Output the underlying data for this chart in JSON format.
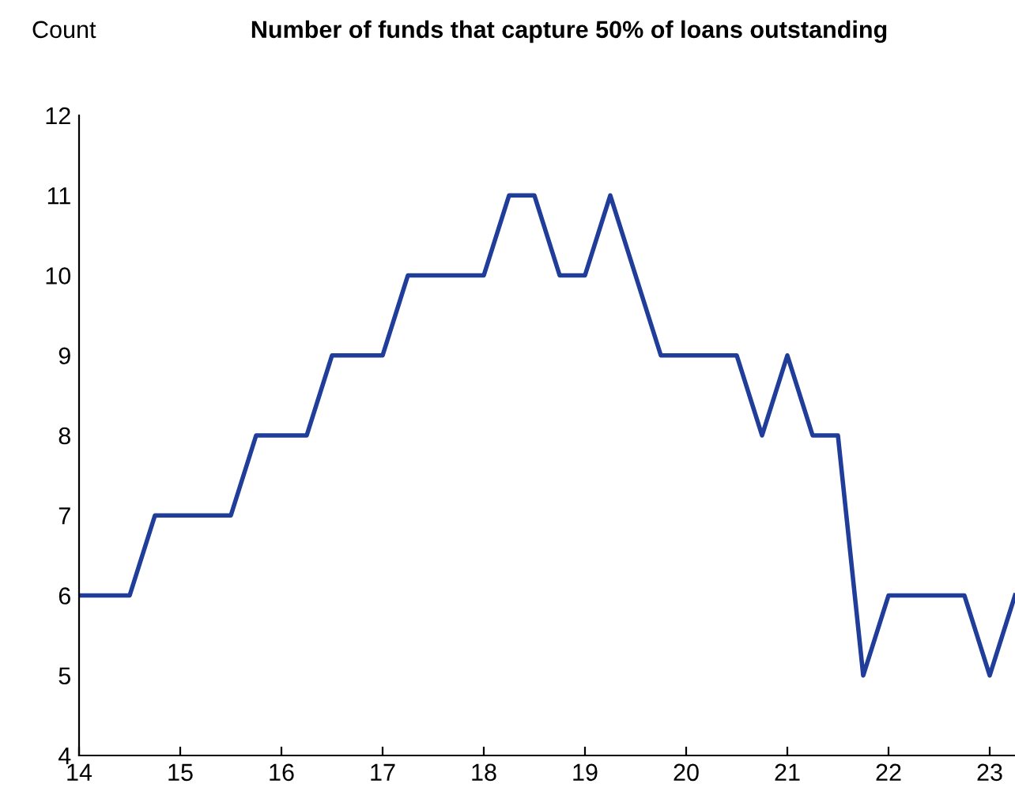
{
  "chart_data": {
    "type": "line",
    "title": "Number of funds that capture 50% of loans outstanding",
    "ylabel": "Count",
    "x": [
      14.0,
      14.5,
      14.75,
      15.5,
      15.75,
      16.25,
      16.5,
      17.0,
      17.25,
      18.0,
      18.25,
      18.5,
      18.75,
      19.0,
      19.25,
      19.75,
      20.5,
      20.75,
      21.0,
      21.25,
      21.5,
      21.75,
      22.0,
      22.75,
      23.0,
      23.25
    ],
    "series": [
      {
        "color": "#1f3d99",
        "values": [
          6,
          6,
          7,
          7,
          8,
          8,
          9,
          9,
          10,
          10,
          11,
          11,
          10,
          10,
          11,
          9,
          9,
          8,
          9,
          8,
          8,
          5,
          6,
          6,
          5,
          6
        ]
      }
    ],
    "xlim": [
      14,
      23.25
    ],
    "xticks": [
      14,
      15,
      16,
      17,
      18,
      19,
      20,
      21,
      22,
      23
    ],
    "ylim": [
      4,
      12
    ],
    "yticks": [
      4,
      5,
      6,
      7,
      8,
      9,
      10,
      11,
      12
    ],
    "grid": false,
    "legend": false,
    "marker": "none",
    "line_style": "solid"
  }
}
